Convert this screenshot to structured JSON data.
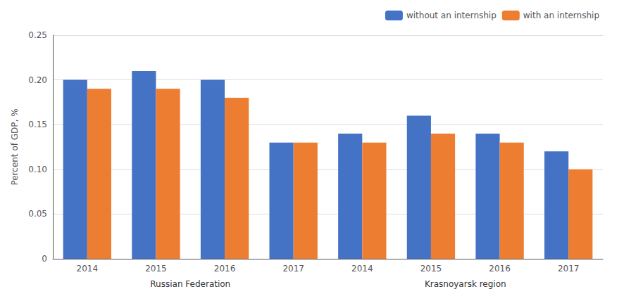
{
  "chart_data": {
    "type": "bar",
    "categories": [
      "2014",
      "2015",
      "2016",
      "2017",
      "2014",
      "2015",
      "2016",
      "2017"
    ],
    "series": [
      {
        "name": "without an internship",
        "color": "#4472C4",
        "values": [
          0.2,
          0.21,
          0.2,
          0.13,
          0.14,
          0.16,
          0.14,
          0.12
        ]
      },
      {
        "name": "with an internship",
        "color": "#ED7D31",
        "values": [
          0.19,
          0.19,
          0.18,
          0.13,
          0.13,
          0.14,
          0.13,
          0.1
        ]
      }
    ],
    "ylabel": "Percent of GDP, %",
    "ylim": [
      0,
      0.25
    ],
    "yticks": [
      0,
      0.05,
      {
        "value": 0.1,
        "label": "0.10"
      },
      0.15,
      {
        "value": 0.2,
        "label": "0.20"
      },
      0.25
    ],
    "annotations": [
      "Russian Federation",
      "Krasnoyarsk region"
    ],
    "grid": true,
    "legend": "upper right"
  }
}
